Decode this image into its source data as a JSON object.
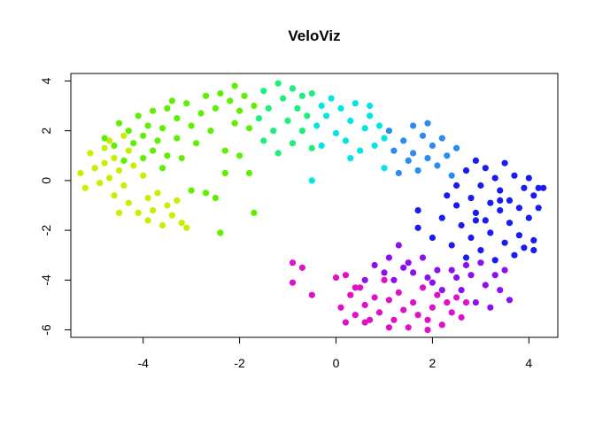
{
  "chart_data": {
    "type": "scatter",
    "title": "VeloViz",
    "xlabel": "",
    "ylabel": "",
    "xlim": [
      -5.5,
      4.6
    ],
    "ylim": [
      -6.3,
      4.3
    ],
    "xticks": [
      -4,
      -2,
      0,
      2,
      4
    ],
    "yticks": [
      -6,
      -4,
      -2,
      0,
      2,
      4
    ],
    "xtick_labels": [
      "-4",
      "-2",
      "0",
      "2",
      "4"
    ],
    "ytick_labels": [
      "-6",
      "-4",
      "-2",
      "0",
      "2",
      "4"
    ],
    "grid": false,
    "legend": "none",
    "color_encoding": "rainbow hue along trajectory (yellow-green → green → cyan → blue → purple → magenta)",
    "series": [
      {
        "color": "#c6f000",
        "points": [
          [
            -5.3,
            0.3
          ],
          [
            -5.2,
            -0.3
          ],
          [
            -5.1,
            1.1
          ],
          [
            -5.0,
            0.5
          ],
          [
            -4.9,
            -0.1
          ],
          [
            -4.8,
            1.3
          ],
          [
            -4.8,
            0.7
          ],
          [
            -4.7,
            0.1
          ],
          [
            -4.7,
            1.6
          ],
          [
            -4.6,
            0.9
          ],
          [
            -4.6,
            -0.6
          ],
          [
            -4.5,
            0.4
          ],
          [
            -4.5,
            -1.3
          ],
          [
            -4.4,
            1.8
          ],
          [
            -4.4,
            -0.2
          ],
          [
            -4.3,
            1.2
          ],
          [
            -4.3,
            -0.9
          ],
          [
            -4.2,
            0.6
          ],
          [
            -4.1,
            -1.3
          ],
          [
            -4.0,
            0.2
          ],
          [
            -3.9,
            -0.7
          ],
          [
            -3.9,
            -1.6
          ],
          [
            -3.8,
            -1.2
          ],
          [
            -3.7,
            -0.5
          ],
          [
            -3.6,
            -1.8
          ],
          [
            -3.5,
            -1.0
          ],
          [
            -3.4,
            -1.4
          ],
          [
            -3.3,
            -0.8
          ],
          [
            -3.2,
            -1.7
          ],
          [
            -3.1,
            -1.9
          ]
        ]
      },
      {
        "color": "#5ef000",
        "points": [
          [
            -4.8,
            1.7
          ],
          [
            -4.6,
            1.4
          ],
          [
            -4.5,
            2.3
          ],
          [
            -4.4,
            0.8
          ],
          [
            -4.3,
            2.0
          ],
          [
            -4.2,
            1.5
          ],
          [
            -4.1,
            2.6
          ],
          [
            -4.0,
            0.9
          ],
          [
            -4.0,
            1.8
          ],
          [
            -3.9,
            2.2
          ],
          [
            -3.8,
            1.2
          ],
          [
            -3.8,
            2.8
          ],
          [
            -3.7,
            1.6
          ],
          [
            -3.6,
            0.5
          ],
          [
            -3.6,
            2.1
          ],
          [
            -3.5,
            2.9
          ],
          [
            -3.5,
            1.0
          ],
          [
            -3.4,
            3.2
          ],
          [
            -3.3,
            1.7
          ],
          [
            -3.3,
            2.5
          ],
          [
            -3.2,
            0.9
          ],
          [
            -3.1,
            3.1
          ],
          [
            -3.0,
            2.2
          ],
          [
            -3.0,
            -0.4
          ],
          [
            -2.9,
            1.5
          ],
          [
            -2.8,
            2.7
          ],
          [
            -2.7,
            3.4
          ],
          [
            -2.7,
            -0.5
          ],
          [
            -2.6,
            2.0
          ],
          [
            -2.5,
            -0.7
          ],
          [
            -2.5,
            2.9
          ],
          [
            -2.4,
            -2.1
          ],
          [
            -2.4,
            3.5
          ],
          [
            -2.3,
            1.2
          ],
          [
            -2.3,
            0.3
          ],
          [
            -2.2,
            3.2
          ],
          [
            -2.1,
            2.3
          ],
          [
            -2.1,
            3.8
          ],
          [
            -2.0,
            1.0
          ],
          [
            -2.0,
            2.8
          ],
          [
            -1.9,
            3.4
          ],
          [
            -1.8,
            0.3
          ],
          [
            -1.8,
            2.1
          ],
          [
            -1.7,
            -1.3
          ],
          [
            -1.7,
            3.0
          ]
        ]
      },
      {
        "color": "#1df07a",
        "points": [
          [
            -1.6,
            2.5
          ],
          [
            -1.5,
            3.6
          ],
          [
            -1.5,
            1.6
          ],
          [
            -1.4,
            2.9
          ],
          [
            -1.3,
            2.0
          ],
          [
            -1.2,
            3.9
          ],
          [
            -1.2,
            1.1
          ],
          [
            -1.1,
            3.3
          ],
          [
            -1.0,
            2.4
          ],
          [
            -0.9,
            1.5
          ],
          [
            -0.9,
            3.7
          ],
          [
            -0.8,
            2.9
          ],
          [
            -0.7,
            2.0
          ],
          [
            -0.7,
            3.4
          ],
          [
            -0.6,
            2.6
          ],
          [
            -0.5,
            1.3
          ],
          [
            -0.5,
            3.5
          ]
        ]
      },
      {
        "color": "#00e6e6",
        "points": [
          [
            -0.4,
            2.2
          ],
          [
            -0.3,
            3.0
          ],
          [
            -0.3,
            1.4
          ],
          [
            -0.2,
            2.6
          ],
          [
            -0.1,
            3.3
          ],
          [
            0.0,
            1.9
          ],
          [
            0.1,
            2.9
          ],
          [
            0.2,
            1.6
          ],
          [
            0.3,
            2.4
          ],
          [
            0.4,
            3.1
          ],
          [
            0.5,
            1.2
          ],
          [
            0.6,
            2.1
          ],
          [
            0.7,
            2.6
          ],
          [
            0.8,
            1.4
          ],
          [
            0.9,
            2.2
          ],
          [
            1.0,
            1.7
          ],
          [
            1.0,
            0.5
          ],
          [
            -0.5,
            0.0
          ],
          [
            0.3,
            0.9
          ],
          [
            0.7,
            3.0
          ]
        ]
      },
      {
        "color": "#2a8cf2",
        "points": [
          [
            1.1,
            2.0
          ],
          [
            1.2,
            1.2
          ],
          [
            1.3,
            0.3
          ],
          [
            1.4,
            1.6
          ],
          [
            1.5,
            0.8
          ],
          [
            1.6,
            2.2
          ],
          [
            1.6,
            1.1
          ],
          [
            1.7,
            0.4
          ],
          [
            1.8,
            1.8
          ],
          [
            1.9,
            0.9
          ],
          [
            1.9,
            2.3
          ],
          [
            2.0,
            1.4
          ],
          [
            2.1,
            0.6
          ],
          [
            2.2,
            1.7
          ],
          [
            2.3,
            1.0
          ],
          [
            2.4,
            0.2
          ],
          [
            2.5,
            1.3
          ]
        ]
      },
      {
        "color": "#1a1af5",
        "points": [
          [
            1.7,
            -1.2
          ],
          [
            1.7,
            -1.9
          ],
          [
            2.0,
            -2.3
          ],
          [
            2.2,
            -1.5
          ],
          [
            2.3,
            -0.6
          ],
          [
            2.4,
            -2.6
          ],
          [
            2.5,
            -0.2
          ],
          [
            2.5,
            -1.0
          ],
          [
            2.6,
            -1.8
          ],
          [
            2.7,
            -3.1
          ],
          [
            2.7,
            0.4
          ],
          [
            2.8,
            -0.7
          ],
          [
            2.8,
            -2.3
          ],
          [
            2.9,
            -1.3
          ],
          [
            2.9,
            0.8
          ],
          [
            3.0,
            -0.2
          ],
          [
            3.0,
            -2.8
          ],
          [
            3.1,
            -1.6
          ],
          [
            3.1,
            0.5
          ],
          [
            3.2,
            -0.9
          ],
          [
            3.2,
            -2.1
          ],
          [
            3.3,
            0.1
          ],
          [
            3.3,
            -3.2
          ],
          [
            3.4,
            -1.2
          ],
          [
            3.4,
            -0.4
          ],
          [
            3.5,
            -2.5
          ],
          [
            3.5,
            0.7
          ],
          [
            3.6,
            -1.7
          ],
          [
            3.6,
            -0.8
          ],
          [
            3.7,
            -3.0
          ],
          [
            3.7,
            0.2
          ],
          [
            3.8,
            -2.2
          ],
          [
            3.8,
            -1.1
          ],
          [
            3.9,
            -0.3
          ],
          [
            3.9,
            -2.7
          ],
          [
            4.0,
            0.1
          ],
          [
            4.0,
            -1.5
          ],
          [
            4.1,
            -0.6
          ],
          [
            4.1,
            -2.4
          ],
          [
            4.2,
            -1.1
          ],
          [
            4.2,
            -0.3
          ],
          [
            4.3,
            -0.3
          ],
          [
            4.1,
            -2.8
          ],
          [
            3.4,
            -0.8
          ],
          [
            2.9,
            -1.6
          ]
        ]
      },
      {
        "color": "#8a10f2",
        "points": [
          [
            1.3,
            -2.6
          ],
          [
            1.5,
            -3.3
          ],
          [
            1.6,
            -3.7
          ],
          [
            1.8,
            -3.1
          ],
          [
            1.9,
            -3.9
          ],
          [
            2.0,
            -4.1
          ],
          [
            2.1,
            -3.6
          ],
          [
            2.2,
            -4.4
          ],
          [
            2.4,
            -3.6
          ],
          [
            2.5,
            -3.9
          ],
          [
            2.6,
            -4.4
          ],
          [
            2.7,
            -3.4
          ],
          [
            2.8,
            -3.8
          ],
          [
            2.9,
            -4.9
          ],
          [
            3.0,
            -3.3
          ],
          [
            3.1,
            -4.2
          ],
          [
            3.2,
            -5.1
          ],
          [
            3.3,
            -3.8
          ],
          [
            3.4,
            -4.4
          ],
          [
            3.5,
            -3.6
          ],
          [
            3.6,
            -4.8
          ],
          [
            0.8,
            -3.4
          ],
          [
            1.0,
            -3.7
          ],
          [
            1.2,
            -4.0
          ],
          [
            1.4,
            -3.5
          ],
          [
            0.6,
            -4.0
          ],
          [
            1.1,
            -3.1
          ]
        ]
      },
      {
        "color": "#e010c8",
        "points": [
          [
            -0.9,
            -3.3
          ],
          [
            -0.9,
            -4.1
          ],
          [
            -0.7,
            -3.5
          ],
          [
            -0.5,
            -4.6
          ],
          [
            0.0,
            -3.9
          ],
          [
            0.1,
            -5.1
          ],
          [
            0.2,
            -3.8
          ],
          [
            0.3,
            -4.6
          ],
          [
            0.4,
            -5.4
          ],
          [
            0.5,
            -4.3
          ],
          [
            0.6,
            -5.0
          ],
          [
            0.7,
            -5.6
          ],
          [
            0.8,
            -4.7
          ],
          [
            0.9,
            -5.3
          ],
          [
            1.0,
            -4.0
          ],
          [
            1.1,
            -4.8
          ],
          [
            1.2,
            -5.6
          ],
          [
            1.3,
            -4.5
          ],
          [
            1.4,
            -5.2
          ],
          [
            1.5,
            -5.9
          ],
          [
            1.6,
            -4.9
          ],
          [
            1.7,
            -5.4
          ],
          [
            1.8,
            -4.3
          ],
          [
            1.9,
            -5.6
          ],
          [
            2.0,
            -5.1
          ],
          [
            2.1,
            -4.6
          ],
          [
            2.2,
            -5.8
          ],
          [
            2.3,
            -4.9
          ],
          [
            2.4,
            -5.3
          ],
          [
            2.5,
            -4.7
          ],
          [
            2.6,
            -5.5
          ],
          [
            2.7,
            -4.9
          ],
          [
            0.2,
            -5.7
          ],
          [
            0.6,
            -5.7
          ],
          [
            1.1,
            -5.9
          ],
          [
            1.9,
            -6.0
          ],
          [
            0.4,
            -4.3
          ]
        ]
      }
    ]
  }
}
